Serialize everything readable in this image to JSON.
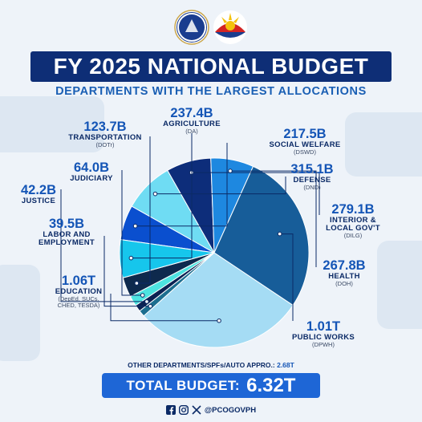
{
  "header": {
    "title": "FY 2025 NATIONAL BUDGET",
    "subtitle": "DEPARTMENTS WITH THE LARGEST ALLOCATIONS"
  },
  "chart_data": {
    "type": "pie",
    "title": "FY 2025 NATIONAL BUDGET",
    "subtitle": "DEPARTMENTS WITH THE LARGEST ALLOCATIONS",
    "slices": [
      {
        "label": "SOCIAL WELFARE",
        "abbr": "(DSWD)",
        "display": "217.5B",
        "value": 217.5,
        "color": "#0a4fcf"
      },
      {
        "label": "DEFENSE",
        "abbr": "(DND)",
        "display": "315.1B",
        "value": 315.1,
        "color": "#6fdcf3"
      },
      {
        "label": "INTERIOR & LOCAL GOV'T",
        "abbr": "(DILG)",
        "display": "279.1B",
        "value": 279.1,
        "color": "#0d2d7a"
      },
      {
        "label": "HEALTH",
        "abbr": "(DOH)",
        "display": "267.8B",
        "value": 267.8,
        "color": "#1e88e0"
      },
      {
        "label": "PUBLIC WORKS",
        "abbr": "(DPWH)",
        "display": "1.01T",
        "value": 1010,
        "color": "#175d99"
      },
      {
        "label": "EDUCATION",
        "abbr": "(DepEd, SUCs, CHED, TESDA)",
        "display": "1.06T",
        "value": 1060,
        "color": "#a5dcf4"
      },
      {
        "label": "LABOR AND EMPLOYMENT",
        "abbr": "",
        "display": "39.5B",
        "value": 39.5,
        "color": "#1c6e8f"
      },
      {
        "label": "JUSTICE",
        "abbr": "",
        "display": "42.2B",
        "value": 42.2,
        "color": "#0b2152"
      },
      {
        "label": "JUDICIARY",
        "abbr": "",
        "display": "64.0B",
        "value": 64.0,
        "color": "#4de3e0"
      },
      {
        "label": "TRANSPORTATION",
        "abbr": "(DOTr)",
        "display": "123.7B",
        "value": 123.7,
        "color": "#0e2a4d"
      },
      {
        "label": "AGRICULTURE",
        "abbr": "(DA)",
        "display": "237.4B",
        "value": 237.4,
        "color": "#16c6ec"
      }
    ],
    "other": {
      "label": "OTHER DEPARTMENTS/SPFs/AUTO APPRO.:",
      "display": "2.68T",
      "value": 2680
    },
    "total": {
      "label": "TOTAL BUDGET:",
      "display": "6.32T",
      "value": 6320
    }
  },
  "footer": {
    "handle": "@PCOGOVPH",
    "icons": [
      "facebook-icon",
      "instagram-icon",
      "x-icon"
    ]
  }
}
